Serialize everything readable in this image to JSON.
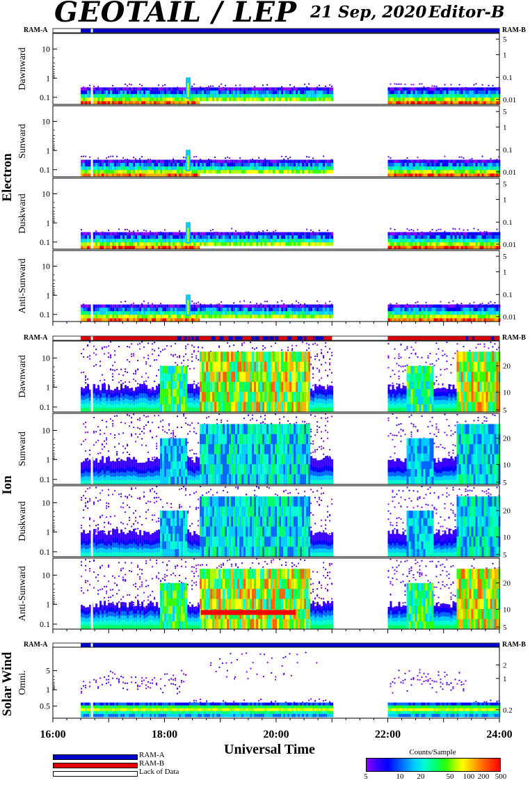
{
  "header": {
    "title": "GEOTAIL / LEP",
    "date": "21 Sep, 2020",
    "editor": "Editor-B"
  },
  "ram_labels": {
    "a": "RAM-A",
    "b": "RAM-B"
  },
  "colors": {
    "ram_a": "#0000cc",
    "ram_b": "#e00000",
    "lack": "#ffffff"
  },
  "legend": {
    "items": [
      {
        "label": "RAM-A",
        "color": "#0000cc"
      },
      {
        "label": "RAM-B",
        "color": "#e00000"
      },
      {
        "label": "Lack of Data",
        "color": "#ffffff"
      }
    ]
  },
  "colorbar": {
    "title": "Counts/Sample",
    "ticks": [
      "5",
      "10",
      "20",
      "50",
      "100",
      "200",
      "500"
    ],
    "tick_values": [
      5,
      10,
      20,
      50,
      100,
      200,
      500
    ]
  },
  "chart_data": {
    "type": "heatmap",
    "xlabel": "Universal Time",
    "x_ticks": [
      "16:00",
      "18:00",
      "20:00",
      "22:00",
      "24:00"
    ],
    "x_range_hours": [
      16,
      24
    ],
    "groups": [
      {
        "name": "Electron",
        "ram_strip": [
          {
            "start": 16.0,
            "end": 16.5,
            "mode": "lack"
          },
          {
            "start": 16.5,
            "end": 24.0,
            "mode": "ram_a"
          }
        ],
        "panels": [
          {
            "label": "Dawnward",
            "left_ticks": [
              "10",
              "1",
              "0.1"
            ],
            "right_ticks": [
              "5",
              "1",
              "0.1",
              "0.01"
            ]
          },
          {
            "label": "Sunward",
            "left_ticks": [
              "10",
              "1",
              "0.1"
            ],
            "right_ticks": [
              "5",
              "1",
              "0.1",
              "0.01"
            ]
          },
          {
            "label": "Duskward",
            "left_ticks": [
              "10",
              "1",
              "0.1"
            ],
            "right_ticks": [
              "5",
              "1",
              "0.1",
              "0.01"
            ]
          },
          {
            "label": "Anti-Sunward",
            "left_ticks": [
              "10",
              "1",
              "0.1"
            ],
            "right_ticks": [
              "5",
              "1",
              "0.1",
              "0.01"
            ]
          }
        ],
        "left_values": [
          10,
          1,
          0.1
        ],
        "right_values": [
          5,
          1,
          0.1,
          0.01
        ],
        "data_intervals": [
          [
            16.5,
            21.0
          ],
          [
            22.0,
            24.0
          ]
        ]
      },
      {
        "name": "Ion",
        "ram_strip": [
          {
            "start": 16.0,
            "end": 16.5,
            "mode": "lack"
          },
          {
            "start": 16.5,
            "end": 21.0,
            "mode": "ram_b"
          },
          {
            "start": 21.0,
            "end": 22.0,
            "mode": "lack"
          },
          {
            "start": 22.0,
            "end": 24.0,
            "mode": "ram_b"
          }
        ],
        "panels": [
          {
            "label": "Dawnward",
            "left_ticks": [
              "10",
              "1",
              "0.1"
            ],
            "right_ticks": [
              "20",
              "10",
              "5"
            ]
          },
          {
            "label": "Sunward",
            "left_ticks": [
              "10",
              "1",
              "0.1"
            ],
            "right_ticks": [
              "20",
              "10",
              "5"
            ]
          },
          {
            "label": "Duskward",
            "left_ticks": [
              "10",
              "1",
              "0.1"
            ],
            "right_ticks": [
              "20",
              "10",
              "5"
            ]
          },
          {
            "label": "Anti-Sunward",
            "left_ticks": [
              "10",
              "1",
              "0.1"
            ],
            "right_ticks": [
              "20",
              "10",
              "5"
            ]
          }
        ],
        "left_values": [
          10,
          1,
          0.1
        ],
        "right_values": [
          20,
          10,
          5
        ],
        "data_intervals": [
          [
            16.5,
            21.0
          ],
          [
            22.0,
            24.0
          ]
        ]
      },
      {
        "name": "Solar Wind",
        "ram_strip": [
          {
            "start": 16.0,
            "end": 16.5,
            "mode": "lack"
          },
          {
            "start": 16.5,
            "end": 24.0,
            "mode": "ram_a"
          }
        ],
        "panels": [
          {
            "label": "Omni.",
            "left_ticks": [
              "5",
              "1",
              "0.5"
            ],
            "right_ticks": [
              "2",
              "1",
              "0.2"
            ]
          }
        ],
        "left_values": [
          5,
          1,
          0.5
        ],
        "right_values": [
          2,
          1,
          0.2
        ],
        "data_intervals": [
          [
            16.5,
            21.0
          ],
          [
            22.0,
            24.0
          ]
        ]
      }
    ]
  }
}
